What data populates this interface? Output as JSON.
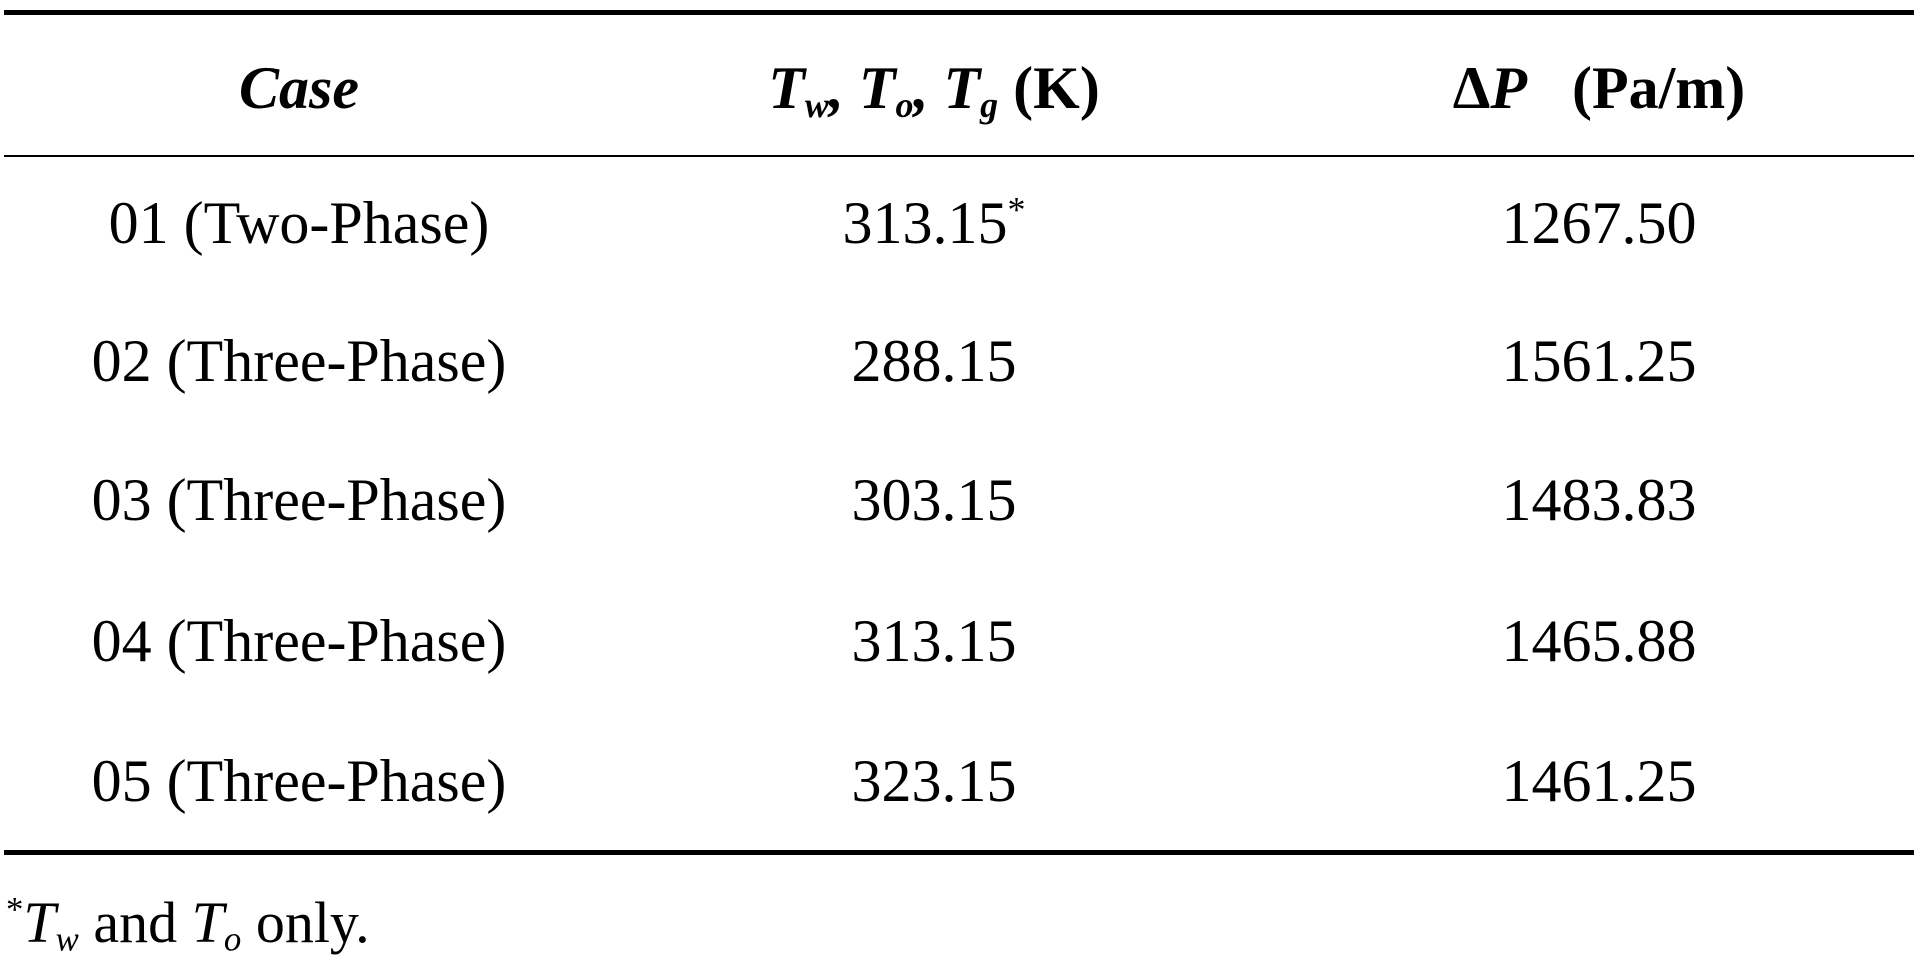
{
  "table": {
    "header": {
      "case": "Case",
      "temp": [
        "T",
        "w",
        ", ",
        "T",
        "o",
        ", ",
        "T",
        "g",
        " (K)"
      ],
      "dp": [
        "Δ",
        "P",
        "   (Pa/m)"
      ]
    },
    "rows": [
      [
        "01 (Two-Phase)",
        "313.15",
        "1267.50"
      ],
      [
        "02 (Three-Phase)",
        "288.15",
        "1561.25"
      ],
      [
        "03 (Three-Phase)",
        "303.15",
        "1483.83"
      ],
      [
        "04 (Three-Phase)",
        "313.15",
        "1465.88"
      ],
      [
        "05 (Three-Phase)",
        "323.15",
        "1461.25"
      ]
    ]
  },
  "footnote": {
    "marker": "*",
    "parts": [
      "T",
      "w",
      " and ",
      "T",
      "o",
      " only."
    ]
  }
}
